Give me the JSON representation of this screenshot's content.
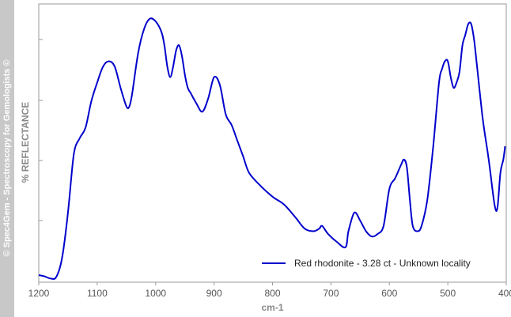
{
  "watermark": "© Spec4Gem - Spectroscopy for Gemologists ©",
  "chart_data": {
    "type": "line",
    "xlabel": "cm-1",
    "ylabel": "% REFLECTANCE",
    "xlim": [
      1200,
      400
    ],
    "x_reversed": true,
    "ylim": [
      0,
      100
    ],
    "y_tick_labels_shown": false,
    "x_ticks": [
      1200,
      1100,
      1000,
      900,
      800,
      700,
      600,
      500,
      400
    ],
    "x_tick_labels": [
      "1200",
      "1100",
      "1000",
      "900",
      "800",
      "700",
      "600",
      "500",
      "400"
    ],
    "grid": false,
    "legend": "bottom-right",
    "series": [
      {
        "name": "Red rhodonite - 3.28 ct - Unknown locality",
        "color": "#0000cc",
        "x": [
          1200,
          1190,
          1180,
          1170,
          1160,
          1150,
          1140,
          1130,
          1120,
          1110,
          1100,
          1090,
          1080,
          1070,
          1060,
          1050,
          1045,
          1040,
          1030,
          1020,
          1010,
          1000,
          990,
          985,
          980,
          975,
          970,
          965,
          960,
          955,
          950,
          945,
          940,
          930,
          920,
          910,
          900,
          890,
          880,
          870,
          860,
          850,
          840,
          820,
          800,
          780,
          760,
          745,
          730,
          720,
          715,
          705,
          690,
          675,
          670,
          660,
          650,
          640,
          630,
          620,
          610,
          600,
          590,
          580,
          575,
          570,
          565,
          560,
          552,
          545,
          535,
          525,
          515,
          510,
          505,
          500,
          495,
          490,
          485,
          480,
          475,
          470,
          465,
          460,
          455,
          450,
          440,
          430,
          420,
          415,
          410,
          405,
          402
        ],
        "y": [
          1.5,
          1.0,
          0.2,
          0.8,
          8,
          25,
          47,
          53,
          57,
          67,
          74,
          80,
          82,
          80,
          72,
          65,
          65,
          70,
          85,
          94,
          98,
          97,
          93,
          88,
          80,
          76,
          80,
          86,
          88,
          84,
          77,
          72,
          70,
          66,
          63,
          68,
          76,
          73,
          62,
          58,
          52,
          46,
          40,
          35,
          31,
          28,
          23,
          19,
          18,
          19,
          20,
          17,
          14,
          12,
          18,
          25,
          22,
          18,
          16,
          17,
          20,
          34,
          38,
          43,
          45,
          42,
          30,
          20,
          18,
          20,
          30,
          50,
          74,
          79,
          82,
          82,
          76,
          72,
          74,
          78,
          88,
          92,
          96,
          96,
          90,
          80,
          60,
          45,
          28,
          27,
          40,
          45,
          50
        ]
      }
    ]
  }
}
